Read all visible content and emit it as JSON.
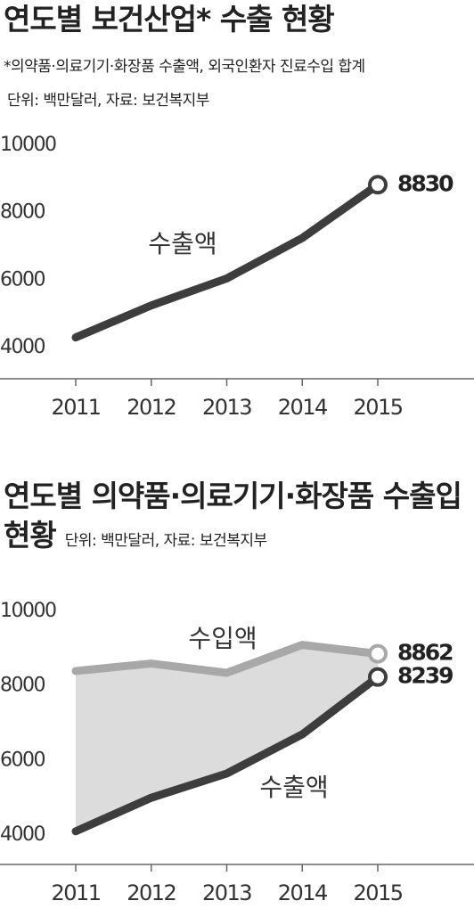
{
  "chart_data": [
    {
      "type": "line",
      "title": "연도별 보건산업* 수출 현황",
      "note": "*의약품·의료기기·화장품 수출액, 외국인환자 진료수입 합계",
      "source": "단위: 백만달러, 자료: 보건복지부",
      "x": [
        2011,
        2012,
        2013,
        2014,
        2015
      ],
      "series": [
        {
          "name": "수출액",
          "color": "#3d3d3d",
          "values": [
            4300,
            5250,
            6050,
            7250,
            8830
          ]
        }
      ],
      "ylim": [
        4000,
        10000
      ],
      "yticks": [
        4000,
        6000,
        8000,
        10000
      ],
      "xlim": [
        2011,
        2015
      ],
      "label_last": true,
      "grid": false
    },
    {
      "type": "line",
      "title": "연도별 의약품·의료기기·화장품 수출입 현황",
      "source": "단위: 백만달러, 자료: 보건복지부",
      "x": [
        2011,
        2012,
        2013,
        2014,
        2015
      ],
      "series": [
        {
          "name": "수입액",
          "color": "#a8a8a8",
          "values": [
            8400,
            8600,
            8350,
            9100,
            8862
          ]
        },
        {
          "name": "수출액",
          "color": "#3d3d3d",
          "values": [
            4100,
            5000,
            5650,
            6700,
            8239
          ]
        }
      ],
      "ylim": [
        4000,
        10000
      ],
      "yticks": [
        4000,
        6000,
        8000,
        10000
      ],
      "xlim": [
        2011,
        2015
      ],
      "fill_between": true,
      "fill_color": "#dcdcdc",
      "label_last": true,
      "grid": false
    }
  ]
}
